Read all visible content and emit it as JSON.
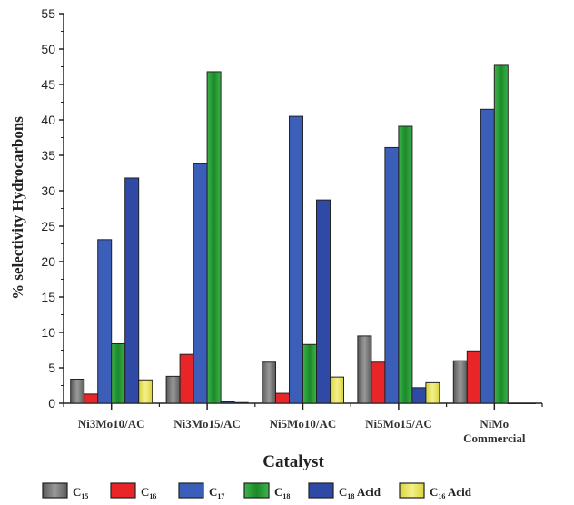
{
  "chart_data": {
    "type": "bar",
    "title": "",
    "xlabel": "Catalyst",
    "ylabel": "% selectivity Hydrocarbons",
    "ylim": [
      0,
      55
    ],
    "yticks": [
      0,
      5,
      10,
      15,
      20,
      25,
      30,
      35,
      40,
      45,
      50,
      55
    ],
    "grid": false,
    "legend_position": "bottom",
    "categories": [
      [
        "Ni3Mo10/AC"
      ],
      [
        "Ni3Mo15/AC"
      ],
      [
        "Ni5Mo10/AC"
      ],
      [
        "Ni5Mo15/AC"
      ],
      [
        "NiMo",
        "Commercial"
      ]
    ],
    "series": [
      {
        "name": "C15",
        "base": "C",
        "sub": "15",
        "suffix": "",
        "color": "#5a5a5a",
        "values": [
          3.4,
          3.8,
          5.8,
          9.5,
          6.0
        ]
      },
      {
        "name": "C16",
        "base": "C",
        "sub": "16",
        "suffix": "",
        "color": "#e8262a",
        "values": [
          1.3,
          6.9,
          1.4,
          5.8,
          7.4
        ]
      },
      {
        "name": "C17",
        "base": "C",
        "sub": "17",
        "suffix": "",
        "color": "#3b5fb8",
        "values": [
          23.1,
          33.8,
          40.5,
          36.1,
          41.5
        ]
      },
      {
        "name": "C18",
        "base": "C",
        "sub": "18",
        "suffix": "",
        "color": "#3fb24a",
        "values": [
          8.4,
          46.8,
          8.3,
          39.1,
          47.7
        ]
      },
      {
        "name": "C18 Acid",
        "base": "C",
        "sub": "18",
        "suffix": " Acid",
        "color": "#2f4aa6",
        "values": [
          31.8,
          0.2,
          28.7,
          2.2,
          0
        ]
      },
      {
        "name": "C16 Acid",
        "base": "C",
        "sub": "16",
        "suffix": " Acid",
        "color": "#d9d43a",
        "values": [
          3.3,
          0.1,
          3.7,
          2.9,
          0
        ]
      }
    ]
  }
}
